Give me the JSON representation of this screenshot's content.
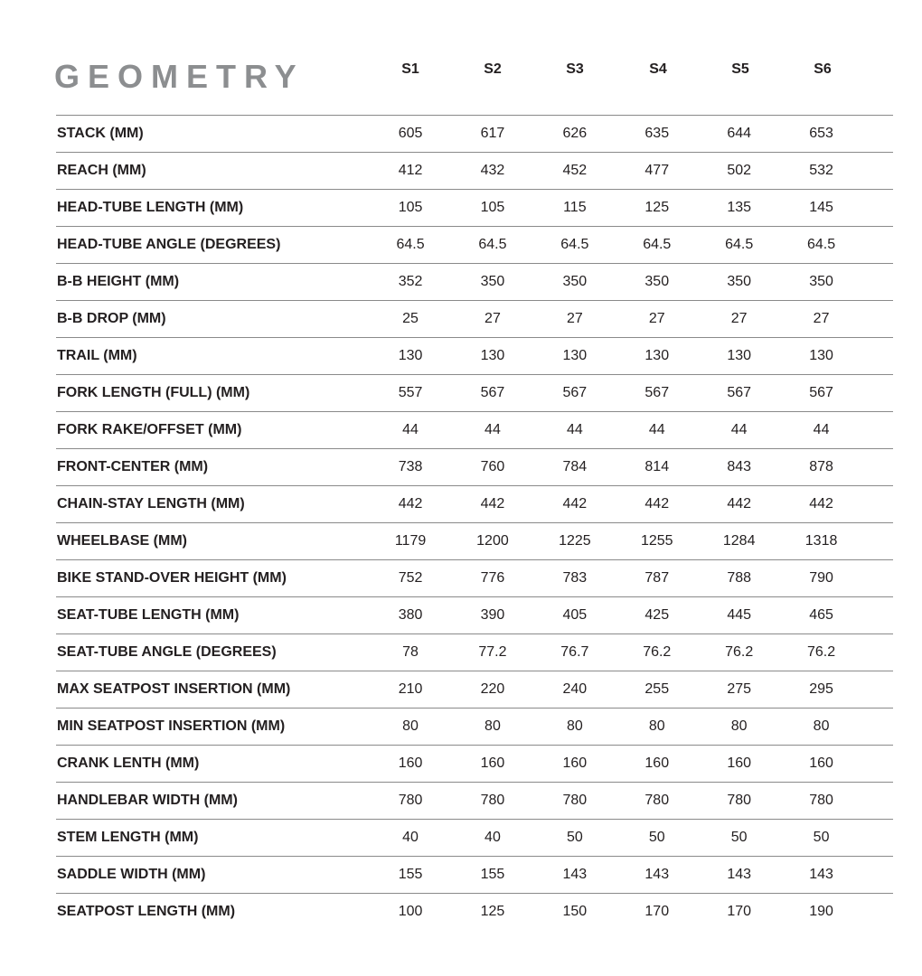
{
  "title": "GEOMETRY",
  "sizes": [
    "S1",
    "S2",
    "S3",
    "S4",
    "S5",
    "S6"
  ],
  "rows": [
    {
      "label": "STACK (MM)",
      "values": [
        "605",
        "617",
        "626",
        "635",
        "644",
        "653"
      ]
    },
    {
      "label": "REACH (MM)",
      "values": [
        "412",
        "432",
        "452",
        "477",
        "502",
        "532"
      ]
    },
    {
      "label": "HEAD-TUBE LENGTH (MM)",
      "values": [
        "105",
        "105",
        "115",
        "125",
        "135",
        "145"
      ]
    },
    {
      "label": "HEAD-TUBE ANGLE (DEGREES)",
      "values": [
        "64.5",
        "64.5",
        "64.5",
        "64.5",
        "64.5",
        "64.5"
      ]
    },
    {
      "label": "B-B HEIGHT (MM)",
      "values": [
        "352",
        "350",
        "350",
        "350",
        "350",
        "350"
      ]
    },
    {
      "label": "B-B DROP (MM)",
      "values": [
        "25",
        "27",
        "27",
        "27",
        "27",
        "27"
      ]
    },
    {
      "label": "TRAIL (MM)",
      "values": [
        "130",
        "130",
        "130",
        "130",
        "130",
        "130"
      ]
    },
    {
      "label": "FORK LENGTH (FULL) (MM)",
      "values": [
        "557",
        "567",
        "567",
        "567",
        "567",
        "567"
      ]
    },
    {
      "label": "FORK RAKE/OFFSET (MM)",
      "values": [
        "44",
        "44",
        "44",
        "44",
        "44",
        "44"
      ]
    },
    {
      "label": "FRONT-CENTER (MM)",
      "values": [
        "738",
        "760",
        "784",
        "814",
        "843",
        "878"
      ]
    },
    {
      "label": "CHAIN-STAY LENGTH (MM)",
      "values": [
        "442",
        "442",
        "442",
        "442",
        "442",
        "442"
      ]
    },
    {
      "label": "WHEELBASE (MM)",
      "values": [
        "1179",
        "1200",
        "1225",
        "1255",
        "1284",
        "1318"
      ]
    },
    {
      "label": "BIKE STAND-OVER HEIGHT (MM)",
      "values": [
        "752",
        "776",
        "783",
        "787",
        "788",
        "790"
      ]
    },
    {
      "label": "SEAT-TUBE LENGTH (MM)",
      "values": [
        "380",
        "390",
        "405",
        "425",
        "445",
        "465"
      ]
    },
    {
      "label": "SEAT-TUBE ANGLE (DEGREES)",
      "values": [
        "78",
        "77.2",
        "76.7",
        "76.2",
        "76.2",
        "76.2"
      ]
    },
    {
      "label": "MAX SEATPOST INSERTION (MM)",
      "values": [
        "210",
        "220",
        "240",
        "255",
        "275",
        "295"
      ]
    },
    {
      "label": "MIN SEATPOST INSERTION (MM)",
      "values": [
        "80",
        "80",
        "80",
        "80",
        "80",
        "80"
      ]
    },
    {
      "label": "CRANK LENTH (MM)",
      "values": [
        "160",
        "160",
        "160",
        "160",
        "160",
        "160"
      ]
    },
    {
      "label": "HANDLEBAR WIDTH (MM)",
      "values": [
        "780",
        "780",
        "780",
        "780",
        "780",
        "780"
      ]
    },
    {
      "label": "STEM LENGTH (MM)",
      "values": [
        "40",
        "40",
        "50",
        "50",
        "50",
        "50"
      ]
    },
    {
      "label": "SADDLE WIDTH (MM)",
      "values": [
        "155",
        "155",
        "143",
        "143",
        "143",
        "143"
      ]
    },
    {
      "label": "SEATPOST LENGTH (MM)",
      "values": [
        "100",
        "125",
        "150",
        "170",
        "170",
        "190"
      ]
    }
  ]
}
